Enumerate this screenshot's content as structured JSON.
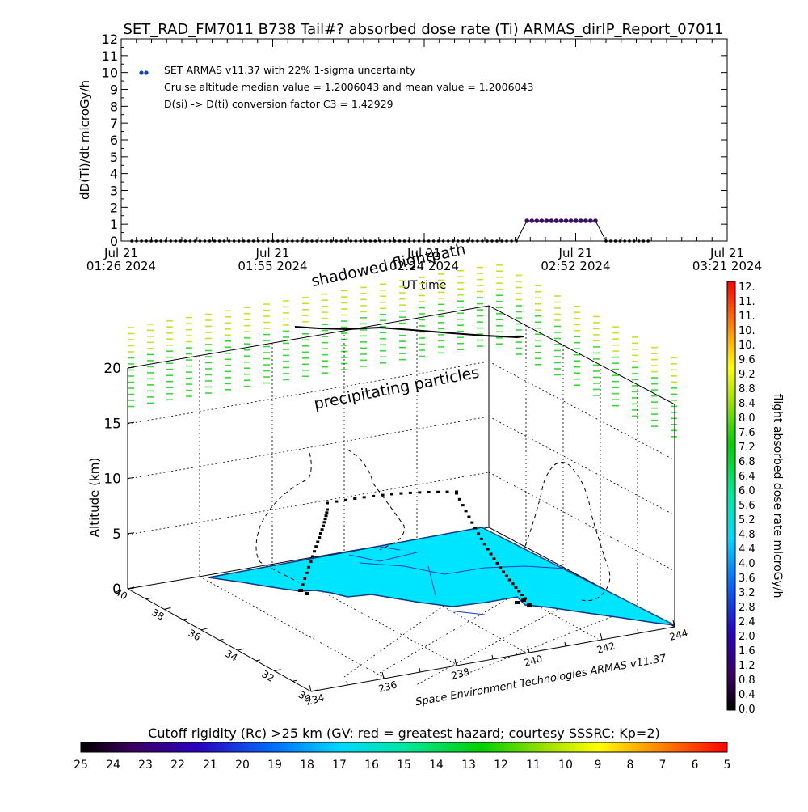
{
  "title": "SET_RAD_FM7011  B738 Tail#? absorbed dose rate (Ti) ARMAS_dirIP_Report_07011",
  "top_chart": {
    "ylabel": "dD(Ti)/dt microGy/h",
    "xlabel": "UT time",
    "yticks": [
      "0",
      "1",
      "2",
      "3",
      "4",
      "5",
      "6",
      "7",
      "8",
      "9",
      "10",
      "11",
      "12"
    ],
    "xticks": [
      {
        "line1": "Jul 21",
        "line2": "01:26 2024"
      },
      {
        "line1": "Jul 21",
        "line2": "01:55 2024"
      },
      {
        "line1": "Jul 21",
        "line2": "02:24 2024"
      },
      {
        "line1": "Jul 21",
        "line2": "02:52 2024"
      },
      {
        "line1": "Jul 21",
        "line2": "03:21 2024"
      }
    ],
    "legend": {
      "line1": "SET ARMAS v11.37 with 22% 1-sigma uncertainty",
      "line2": "Cruise altitude median value = 1.2006043 and mean value = 1.2006043",
      "line3": "D(si) -> D(ti) conversion factor C3 = 1.42929"
    }
  },
  "chart_data": [
    {
      "type": "line",
      "title": "SET_RAD_FM7011  B738 Tail#? absorbed dose rate (Ti) ARMAS_dirIP_Report_07011",
      "xlabel": "UT time",
      "ylabel": "dD(Ti)/dt microGy/h",
      "ylim": [
        0,
        12
      ],
      "xlim": [
        "2024-07-21 01:26",
        "2024-07-21 03:21"
      ],
      "series": [
        {
          "name": "SET ARMAS v11.37 with 22% 1-sigma uncertainty",
          "segments": [
            {
              "x_start": "2024-07-21 01:28",
              "x_end": "2024-07-21 02:41",
              "y": 0.0
            },
            {
              "x_start": "2024-07-21 02:43",
              "x_end": "2024-07-21 02:56",
              "y": 1.2
            },
            {
              "x_start": "2024-07-21 02:58",
              "x_end": "2024-07-21 03:06",
              "y": 0.0
            }
          ]
        }
      ]
    },
    {
      "type": "scatter",
      "title": "Cutoff rigidity (Rc) >25 km (GV: red = greatest hazard; courtesy SSSRC; Kp=2)",
      "zlabel": "Altitude (km)",
      "zticks": [
        "0",
        "5",
        "10",
        "15",
        "20"
      ],
      "latitude_ticks": [
        "30",
        "32",
        "34",
        "36",
        "38",
        "40"
      ],
      "longitude_ticks": [
        "234",
        "236",
        "238",
        "240",
        "242",
        "244"
      ],
      "flight_path_altitude_km": {
        "cruise": 10.2,
        "start": 0,
        "end": 0
      },
      "colorbar_range_microGy_h": [
        0.0,
        12.0
      ]
    }
  ],
  "three_d": {
    "zlabel": "Altitude (km)",
    "zticks": [
      "0",
      "5",
      "10",
      "15",
      "20"
    ],
    "lat_ticks": [
      "30",
      "32",
      "34",
      "36",
      "38",
      "40"
    ],
    "lon_ticks": [
      "234",
      "236",
      "238",
      "240",
      "242",
      "244"
    ],
    "label_shadowed": "shadowed flightpath",
    "label_precip": "precipitating particles",
    "credit": "Space Environment Technologies ARMAS v11.37"
  },
  "right_colorbar": {
    "label": "flight absorbed dose rate microGy/h",
    "ticks": [
      "0.0",
      "0.4",
      "0.8",
      "1.2",
      "1.6",
      "2.0",
      "2.4",
      "2.8",
      "3.2",
      "3.6",
      "4.0",
      "4.4",
      "4.8",
      "5.2",
      "5.6",
      "6.0",
      "6.4",
      "6.8",
      "7.2",
      "7.6",
      "8.0",
      "8.4",
      "8.8",
      "9.2",
      "9.6",
      "10.",
      "10.",
      "11.",
      "11.",
      "12."
    ]
  },
  "bottom_colorbar": {
    "title": "Cutoff rigidity (Rc) >25 km (GV: red = greatest hazard; courtesy SSSRC; Kp=2)",
    "ticks": [
      "25",
      "24",
      "23",
      "22",
      "21",
      "20",
      "19",
      "18",
      "17",
      "16",
      "15",
      "14",
      "13",
      "12",
      "11",
      "10",
      "9",
      "8",
      "7",
      "6",
      "5"
    ]
  },
  "colors": {
    "marker": "#3a1060",
    "legend_marker": "#1040c0",
    "map_fill": "#00e5ff",
    "map_edge": "#0a3a8a",
    "rain_green": "#39d839",
    "rain_yellow": "#c8e02a"
  }
}
